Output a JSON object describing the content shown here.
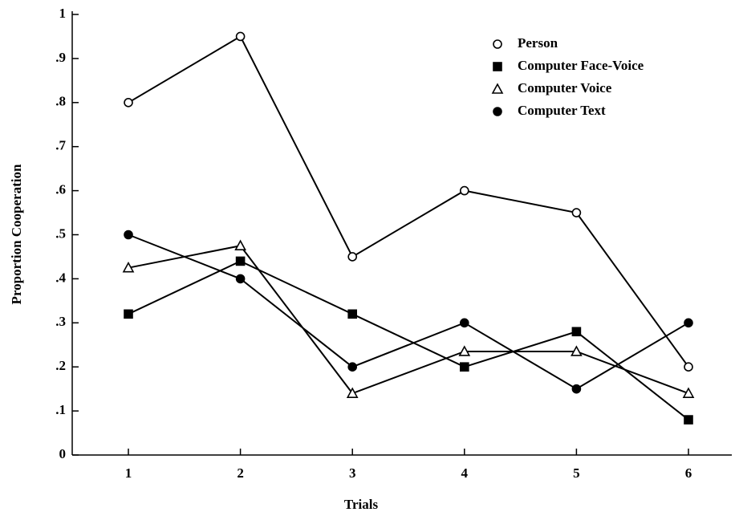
{
  "chart_data": {
    "type": "line",
    "x_label": "Trials",
    "y_label": "Proportion Cooperation",
    "categories": [
      "1",
      "2",
      "3",
      "4",
      "5",
      "6"
    ],
    "series": [
      {
        "name": "Person",
        "color": "#000000",
        "marker": "circle-open",
        "values": [
          0.8,
          0.95,
          0.45,
          0.6,
          0.55,
          0.2
        ]
      },
      {
        "name": "Computer Face-Voice",
        "color": "#000000",
        "marker": "square-filled",
        "values": [
          0.32,
          0.44,
          0.32,
          0.2,
          0.28,
          0.08
        ]
      },
      {
        "name": "Computer Voice",
        "color": "#000000",
        "marker": "triangle-open",
        "values": [
          0.425,
          0.475,
          0.14,
          0.235,
          0.235,
          0.14
        ]
      },
      {
        "name": "Computer Text",
        "color": "#000000",
        "marker": "circle-filled",
        "values": [
          0.5,
          0.4,
          0.2,
          0.3,
          0.15,
          0.3
        ]
      }
    ],
    "ylim": [
      0,
      1
    ],
    "yticks": [
      0,
      {
        "value": 0.1,
        "label": ".1"
      },
      {
        "value": 0.2,
        "label": ".2"
      },
      {
        "value": 0.3,
        "label": ".3"
      },
      {
        "value": 0.4,
        "label": ".4"
      },
      {
        "value": 0.5,
        "label": ".5"
      },
      {
        "value": 0.6,
        "label": ".6"
      },
      {
        "value": 0.7,
        "label": ".7"
      },
      {
        "value": 0.8,
        "label": ".8"
      },
      {
        "value": 0.9,
        "label": ".9"
      },
      1
    ],
    "legend": "upper right",
    "grid": false
  }
}
